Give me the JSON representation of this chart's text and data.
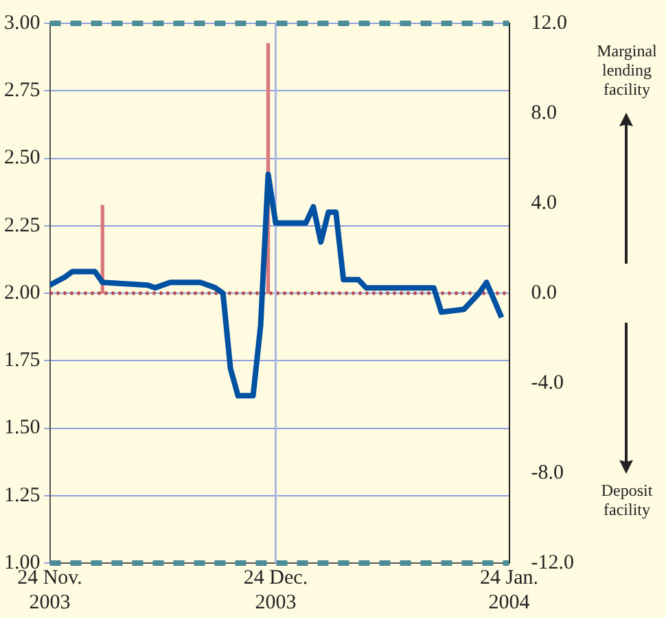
{
  "chart_data": {
    "type": "line",
    "x": [
      "2003-11-24",
      "2003-11-26",
      "2003-11-27",
      "2003-11-30",
      "2003-12-01",
      "2003-12-07",
      "2003-12-08",
      "2003-12-10",
      "2003-12-12",
      "2003-12-14",
      "2003-12-16",
      "2003-12-17",
      "2003-12-18",
      "2003-12-19",
      "2003-12-21",
      "2003-12-22",
      "2003-12-23",
      "2003-12-24",
      "2003-12-28",
      "2003-12-29",
      "2003-12-30",
      "2003-12-31",
      "2004-01-01",
      "2004-01-02",
      "2004-01-04",
      "2004-01-05",
      "2004-01-14",
      "2004-01-15",
      "2004-01-18",
      "2004-01-20",
      "2004-01-21",
      "2004-01-23"
    ],
    "series": [
      {
        "color": "#0051a2",
        "values": [
          2.03,
          2.06,
          2.08,
          2.08,
          2.04,
          2.03,
          2.02,
          2.04,
          2.04,
          2.04,
          2.02,
          2.0,
          1.72,
          1.62,
          1.62,
          1.88,
          2.44,
          2.26,
          2.26,
          2.32,
          2.19,
          2.3,
          2.3,
          2.05,
          2.05,
          2.02,
          2.02,
          1.93,
          1.94,
          2.0,
          2.04,
          1.91
        ]
      },
      {
        "type": "bar",
        "axis": "y2",
        "color": "#d9797c",
        "x": [
          "2003-12-01",
          "2003-12-23"
        ],
        "values": [
          3.9,
          11.1
        ]
      }
    ],
    "xlim": [
      "2003-11-24",
      "2004-01-24"
    ],
    "xticks": [
      {
        "value": "2003-11-24",
        "label": "24 Nov. 2003"
      },
      {
        "value": "2003-12-24",
        "label": "24 Dec. 2003"
      },
      {
        "value": "2004-01-24",
        "label": "24 Jan. 2004"
      }
    ],
    "ylim": [
      1,
      3
    ],
    "yticks": [
      {
        "value": 1,
        "label": "1.00"
      },
      {
        "value": 1.25,
        "label": "1.25"
      },
      {
        "value": 1.5,
        "label": "1.50"
      },
      {
        "value": 1.75,
        "label": "1.75"
      },
      {
        "value": 2,
        "label": "2.00"
      },
      {
        "value": 2.25,
        "label": "2.25"
      },
      {
        "value": 2.5,
        "label": "2.50"
      },
      {
        "value": 2.75,
        "label": "2.75"
      },
      {
        "value": 3,
        "label": "3.00"
      }
    ],
    "y2lim": [
      -12,
      12
    ],
    "y2ticks": [
      {
        "value": -12,
        "label": "-12.0"
      },
      {
        "value": -8,
        "label": "-8.0"
      },
      {
        "value": -4,
        "label": "-4.0"
      },
      {
        "value": 0,
        "label": "0.0"
      },
      {
        "value": 4,
        "label": "4.0"
      },
      {
        "value": 8,
        "label": "8.0"
      },
      {
        "value": 12,
        "label": "12.0"
      }
    ],
    "ref_lines": [
      {
        "axis": "y",
        "value": 3,
        "color": "#4a8c98",
        "line_style": "dashed"
      },
      {
        "axis": "y",
        "value": 1,
        "color": "#4a8c98",
        "line_style": "dashed"
      },
      {
        "axis": "y2",
        "value": 0,
        "color": "#b8474a",
        "line_style": "dotted"
      },
      {
        "axis": "x",
        "value": "2003-12-24",
        "color": "#a9b6e2",
        "line_style": "solid"
      }
    ],
    "annotations": [
      "Marginal lending facility",
      "Deposit facility"
    ],
    "grid": "y",
    "marker": "none",
    "line_style": "solid"
  }
}
